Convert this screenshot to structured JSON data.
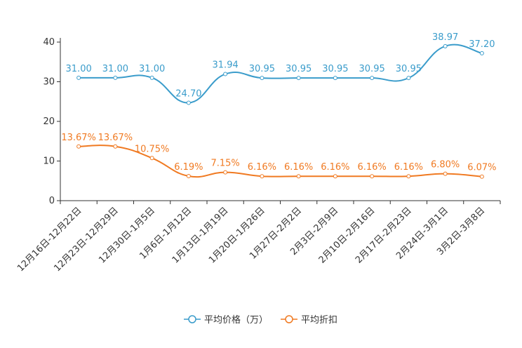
{
  "chart_data": {
    "type": "line",
    "title": "",
    "xlabel": "",
    "ylabel": "",
    "ylim": [
      0,
      40
    ],
    "yticks": [
      0,
      10,
      20,
      30,
      40
    ],
    "categories": [
      "12月16日-12月22日",
      "12月23日-12月29日",
      "12月30日-1月5日",
      "1月6日-1月12日",
      "1月13日-1月19日",
      "1月20日-1月26日",
      "1月27日-2月2日",
      "2月3日-2月9日",
      "2月10日-2月16日",
      "2月17日-2月23日",
      "2月24日-3月1日",
      "3月2日-3月8日"
    ],
    "series": [
      {
        "name": "平均价格（万）",
        "color": "#3a9ccb",
        "values": [
          31.0,
          31.0,
          31.0,
          24.7,
          31.94,
          30.95,
          30.95,
          30.95,
          30.95,
          30.95,
          38.97,
          37.2
        ],
        "labels": [
          "31.00",
          "31.00",
          "31.00",
          "24.70",
          "31.94",
          "30.95",
          "30.95",
          "30.95",
          "30.95",
          "30.95",
          "38.97",
          "37.20"
        ]
      },
      {
        "name": "平均折扣",
        "color": "#f07a22",
        "values": [
          13.67,
          13.67,
          10.75,
          6.19,
          7.15,
          6.16,
          6.16,
          6.16,
          6.16,
          6.16,
          6.8,
          6.07
        ],
        "labels": [
          "13.67%",
          "13.67%",
          "10.75%",
          "6.19%",
          "7.15%",
          "6.16%",
          "6.16%",
          "6.16%",
          "6.16%",
          "6.16%",
          "6.80%",
          "6.07%"
        ]
      }
    ],
    "legend": "bottom-center"
  }
}
